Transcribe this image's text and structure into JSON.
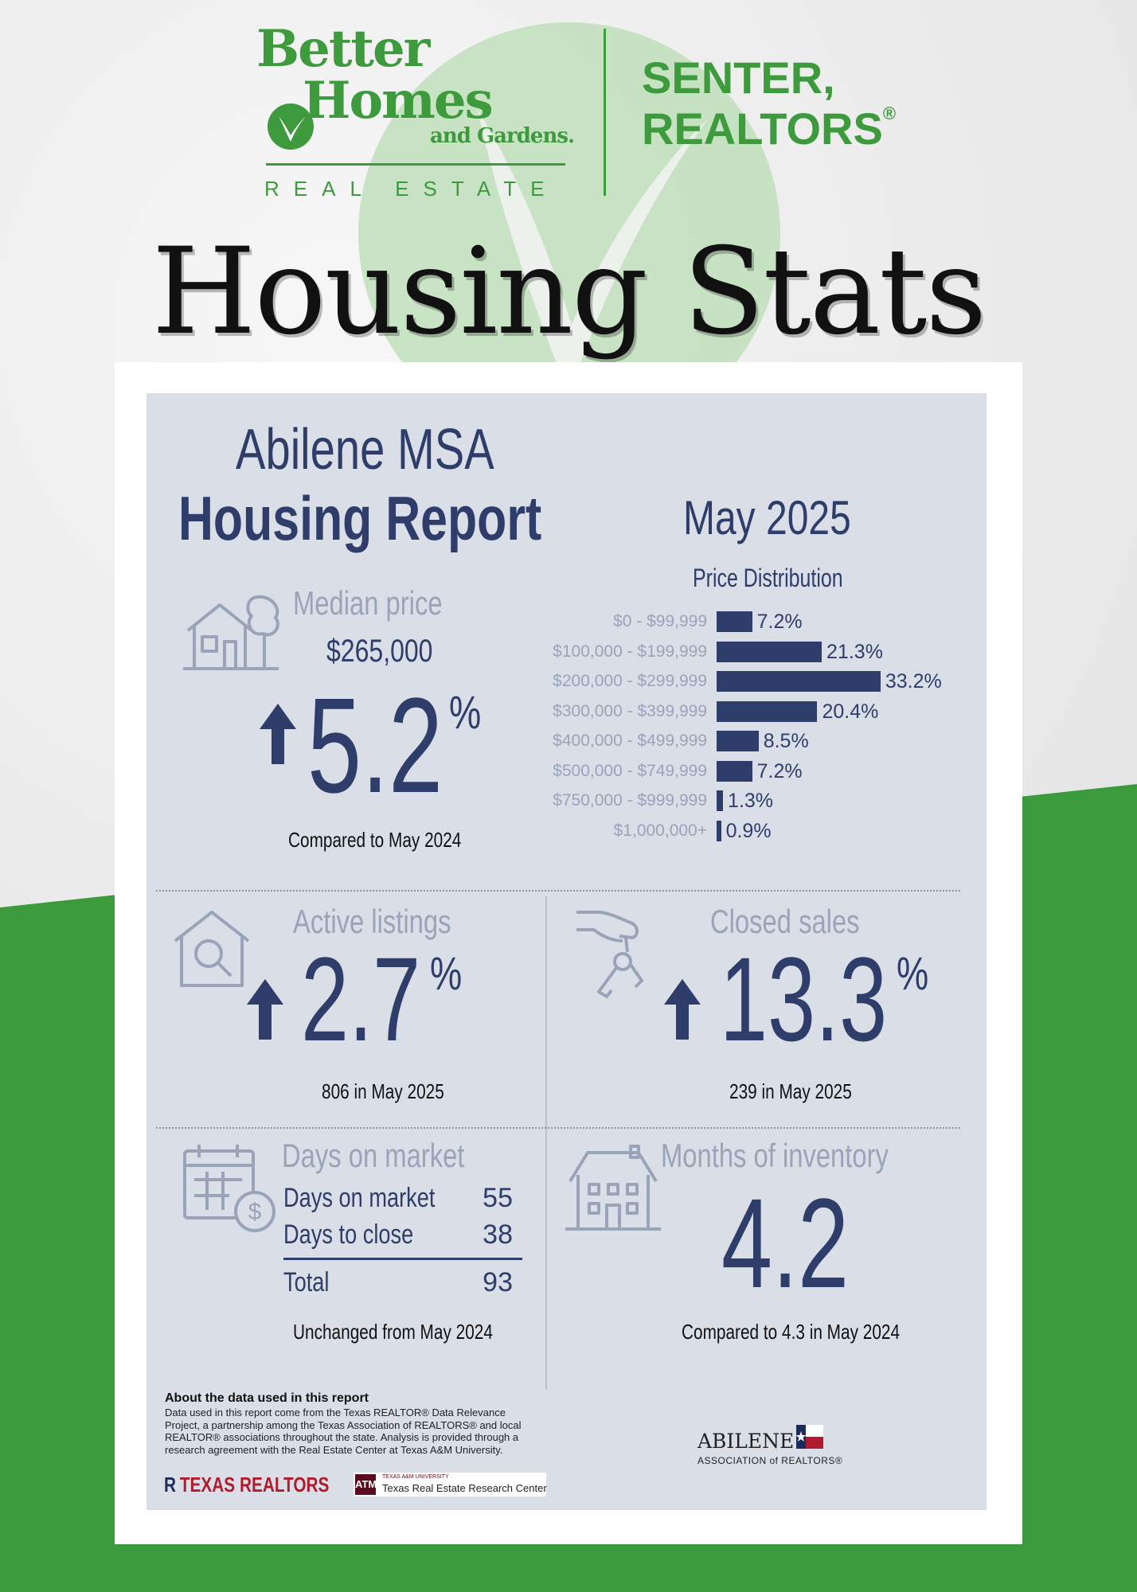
{
  "brand": {
    "line1": "Better",
    "line2": "Homes",
    "line3": "and Gardens.",
    "tagline": "REAL ESTATE",
    "office_line1": "SENTER,",
    "office_line2": "REALTORS",
    "office_mark": "®",
    "green": "#3d9a3d"
  },
  "headline": "Housing Stats",
  "report": {
    "region": "Abilene MSA",
    "title": "Housing Report",
    "date": "May 2025",
    "navy": "#2f3d6b"
  },
  "median_price": {
    "label": "Median price",
    "value": "$265,000",
    "change": "5.2",
    "unit": "%",
    "direction": "up",
    "note": "Compared to May 2024",
    "icon": "house-tree-icon"
  },
  "price_distribution": {
    "title": "Price Distribution",
    "ranges": [
      {
        "range": "$0 - $99,999",
        "pct": 7.2,
        "label": "7.2%"
      },
      {
        "range": "$100,000 - $199,999",
        "pct": 21.3,
        "label": "21.3%"
      },
      {
        "range": "$200,000 - $299,999",
        "pct": 33.2,
        "label": "33.2%"
      },
      {
        "range": "$300,000 - $399,999",
        "pct": 20.4,
        "label": "20.4%"
      },
      {
        "range": "$400,000 - $499,999",
        "pct": 8.5,
        "label": "8.5%"
      },
      {
        "range": "$500,000 - $749,999",
        "pct": 7.2,
        "label": "7.2%"
      },
      {
        "range": "$750,000 - $999,999",
        "pct": 1.3,
        "label": "1.3%"
      },
      {
        "range": "$1,000,000+",
        "pct": 0.9,
        "label": "0.9%"
      }
    ]
  },
  "active_listings": {
    "label": "Active listings",
    "change": "2.7",
    "unit": "%",
    "direction": "up",
    "note": "806 in May 2025",
    "icon": "house-magnifier-icon"
  },
  "closed_sales": {
    "label": "Closed sales",
    "change": "13.3",
    "unit": "%",
    "direction": "up",
    "note": "239 in May 2025",
    "icon": "hand-keys-icon"
  },
  "days_on_market": {
    "label": "Days on market",
    "rows": [
      {
        "name": "Days on market",
        "value": "55"
      },
      {
        "name": "Days to close",
        "value": "38"
      }
    ],
    "total_label": "Total",
    "total_value": "93",
    "note": "Unchanged from May 2024",
    "icon": "calendar-dollar-icon"
  },
  "months_inventory": {
    "label": "Months of inventory",
    "value": "4.2",
    "note": "Compared to 4.3 in May 2024",
    "icon": "house-building-icon"
  },
  "about": {
    "heading": "About the data used in this report",
    "body": "Data used in this report come from the Texas REALTOR® Data Relevance Project, a partnership among the Texas Association of REALTORS® and local REALTOR® associations throughout the state. Analysis is provided through a research agreement with the Real Estate Center at Texas A&M University."
  },
  "footer_logos": {
    "texas_realtors": "TEXAS REALTORS",
    "tamu_small": "TEXAS A&M UNIVERSITY",
    "tamu_name": "Texas Real Estate Research Center",
    "abilene_name": "ABILENE",
    "abilene_sub": "ASSOCIATION of REALTORS®"
  }
}
